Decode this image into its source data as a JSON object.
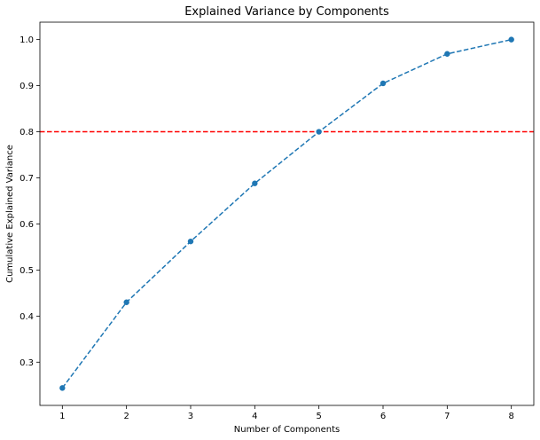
{
  "chart_data": {
    "type": "line",
    "title": "Explained Variance by Components",
    "xlabel": "Number of Components",
    "ylabel": "Cumulative Explained Variance",
    "x": [
      1,
      2,
      3,
      4,
      5,
      6,
      7,
      8
    ],
    "series": [
      {
        "values": [
          0.244,
          0.43,
          0.562,
          0.688,
          0.8,
          0.905,
          0.969,
          1.0
        ],
        "color": "#1f77b4",
        "line_style": "dashed",
        "marker": "circle"
      }
    ],
    "threshold": {
      "y": 0.8,
      "color": "#ff0000",
      "line_style": "dashed"
    },
    "xlim": [
      0.65,
      8.35
    ],
    "ylim": [
      0.2062,
      1.0378
    ],
    "xticks": [
      "1",
      "2",
      "3",
      "4",
      "5",
      "6",
      "7",
      "8"
    ],
    "yticks": [
      "0.3",
      "0.4",
      "0.5",
      "0.6",
      "0.7",
      "0.8",
      "0.9",
      "1.0"
    ],
    "grid": false,
    "legend": "none"
  }
}
